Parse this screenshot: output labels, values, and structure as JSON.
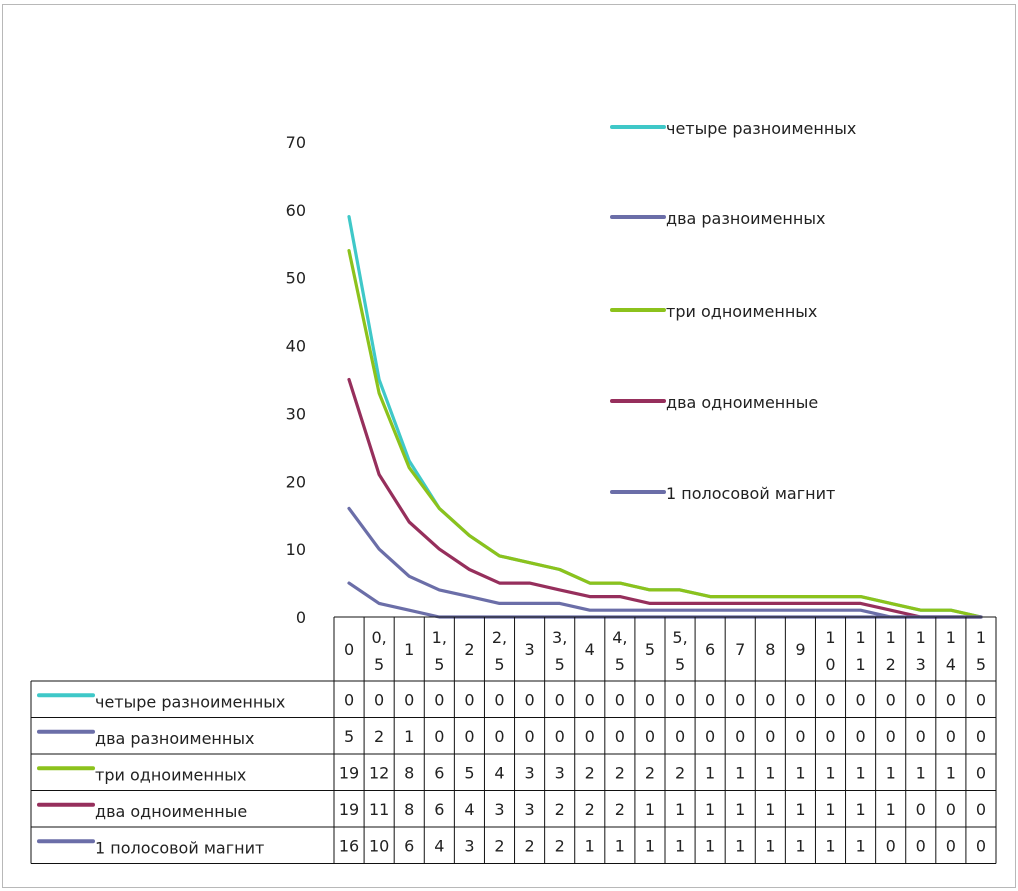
{
  "chart_data": {
    "type": "line",
    "categories": [
      "0",
      "0,5",
      "1",
      "1,5",
      "2",
      "2,5",
      "3",
      "3,5",
      "4",
      "4,5",
      "5",
      "5,5",
      "6",
      "7",
      "8",
      "9",
      "10",
      "11",
      "12",
      "13",
      "14",
      "15"
    ],
    "category_display": [
      [
        "0"
      ],
      [
        "0,",
        "5"
      ],
      [
        "1"
      ],
      [
        "1,",
        "5"
      ],
      [
        "2"
      ],
      [
        "2,",
        "5"
      ],
      [
        "3"
      ],
      [
        "3,",
        "5"
      ],
      [
        "4"
      ],
      [
        "4,",
        "5"
      ],
      [
        "5"
      ],
      [
        "5,",
        "5"
      ],
      [
        "6"
      ],
      [
        "7"
      ],
      [
        "8"
      ],
      [
        "9"
      ],
      [
        "1",
        "0"
      ],
      [
        "1",
        "1"
      ],
      [
        "1",
        "2"
      ],
      [
        "1",
        "3"
      ],
      [
        "1",
        "4"
      ],
      [
        "1",
        "5"
      ]
    ],
    "ylim": [
      0,
      70
    ],
    "yticks": [
      0,
      10,
      20,
      30,
      40,
      50,
      60,
      70
    ],
    "grid": false,
    "legend": "right",
    "series": [
      {
        "name": "четыре разноименных",
        "color": "#3fc8c8",
        "values": [
          59,
          35,
          23,
          16,
          12,
          9,
          8,
          7,
          5,
          5,
          4,
          4,
          3,
          3,
          3,
          3,
          3,
          3,
          2,
          1,
          1,
          0
        ],
        "table_values": [
          "0",
          "0",
          "0",
          "0",
          "0",
          "0",
          "0",
          "0",
          "0",
          "0",
          "0",
          "0",
          "0",
          "0",
          "0",
          "0",
          "0",
          "0",
          "0",
          "0",
          "0",
          "0"
        ]
      },
      {
        "name": "два разноименных",
        "color": "#6b6ea8",
        "values": [
          5,
          2,
          1,
          0,
          0,
          0,
          0,
          0,
          0,
          0,
          0,
          0,
          0,
          0,
          0,
          0,
          0,
          0,
          0,
          0,
          0,
          0
        ],
        "table_values": [
          "5",
          "2",
          "1",
          "0",
          "0",
          "0",
          "0",
          "0",
          "0",
          "0",
          "0",
          "0",
          "0",
          "0",
          "0",
          "0",
          "0",
          "0",
          "0",
          "0",
          "0",
          "0"
        ]
      },
      {
        "name": "три одноименных",
        "color": "#8cc21c",
        "values": [
          54,
          33,
          22,
          16,
          12,
          9,
          8,
          7,
          5,
          5,
          4,
          4,
          3,
          3,
          3,
          3,
          3,
          3,
          2,
          1,
          1,
          0
        ],
        "table_values": [
          "19",
          "12",
          "8",
          "6",
          "5",
          "4",
          "3",
          "3",
          "2",
          "2",
          "2",
          "2",
          "1",
          "1",
          "1",
          "1",
          "1",
          "1",
          "1",
          "1",
          "1",
          "0"
        ]
      },
      {
        "name": "два одноименные",
        "color": "#962f5c",
        "values": [
          35,
          21,
          14,
          10,
          7,
          5,
          5,
          4,
          3,
          3,
          2,
          2,
          2,
          2,
          2,
          2,
          2,
          2,
          1,
          0,
          0,
          0
        ],
        "table_values": [
          "19",
          "11",
          "8",
          "6",
          "4",
          "3",
          "3",
          "2",
          "2",
          "2",
          "1",
          "1",
          "1",
          "1",
          "1",
          "1",
          "1",
          "1",
          "1",
          "0",
          "0",
          "0"
        ]
      },
      {
        "name": "1 полосовой магнит",
        "color": "#6b6ea8",
        "values": [
          16,
          10,
          6,
          4,
          3,
          2,
          2,
          2,
          1,
          1,
          1,
          1,
          1,
          1,
          1,
          1,
          1,
          1,
          0,
          0,
          0,
          0
        ],
        "table_values": [
          "16",
          "10",
          "6",
          "4",
          "3",
          "2",
          "2",
          "2",
          "1",
          "1",
          "1",
          "1",
          "1",
          "1",
          "1",
          "1",
          "1",
          "1",
          "0",
          "0",
          "0",
          "0"
        ]
      }
    ]
  }
}
